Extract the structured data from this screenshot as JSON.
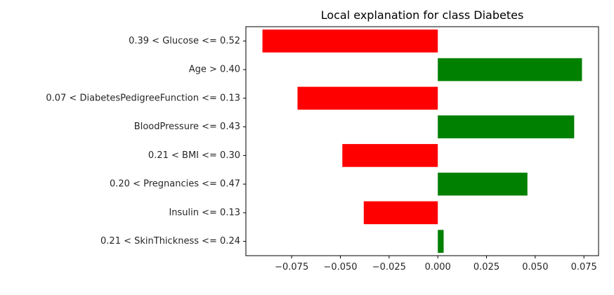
{
  "chart_data": {
    "type": "bar",
    "orientation": "horizontal",
    "title": "Local explanation for class Diabetes",
    "xlabel": "",
    "ylabel": "",
    "categories": [
      "0.39 < Glucose <= 0.52",
      "Age > 0.40",
      "0.07 < DiabetesPedigreeFunction <= 0.13",
      "BloodPressure <= 0.43",
      "0.21 < BMI <= 0.30",
      "0.20 < Pregnancies <= 0.47",
      "Insulin <= 0.13",
      "0.21 < SkinThickness <= 0.24"
    ],
    "values": [
      -0.09,
      0.074,
      -0.072,
      0.07,
      -0.049,
      0.046,
      -0.038,
      0.003
    ],
    "xlim": [
      -0.0985,
      0.0825
    ],
    "xticks": [
      -0.075,
      -0.05,
      -0.025,
      0.0,
      0.025,
      0.05,
      0.075
    ],
    "xtick_labels": [
      "−0.075",
      "−0.050",
      "−0.025",
      "0.000",
      "0.025",
      "0.050",
      "0.075"
    ],
    "grid": false,
    "colors": {
      "positive": "#008000",
      "negative": "#ff0000"
    }
  }
}
